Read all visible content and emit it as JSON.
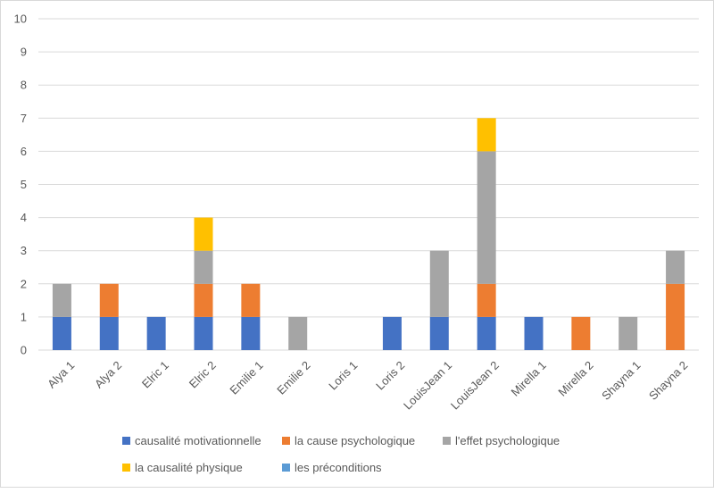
{
  "chart_data": {
    "type": "bar",
    "stacked": true,
    "categories": [
      "Alya 1",
      "Alya 2",
      "Elric 1",
      "Elric 2",
      "Emilie 1",
      "Emilie 2",
      "Loris 1",
      "Loris 2",
      "LouisJean 1",
      "LouisJean 2",
      "Mirella 1",
      "Mirella 2",
      "Shayna 1",
      "Shayna 2"
    ],
    "series": [
      {
        "name": "causalité motivationnelle",
        "color": "#4472c4",
        "values": [
          1,
          1,
          1,
          1,
          1,
          0,
          0,
          1,
          1,
          1,
          1,
          0,
          0,
          0
        ]
      },
      {
        "name": "la cause psychologique",
        "color": "#ed7d31",
        "values": [
          0,
          1,
          0,
          1,
          1,
          0,
          0,
          0,
          0,
          1,
          0,
          1,
          0,
          2
        ]
      },
      {
        "name": "l'effet psychologique",
        "color": "#a5a5a5",
        "values": [
          1,
          0,
          0,
          1,
          0,
          1,
          0,
          0,
          2,
          4,
          0,
          0,
          1,
          1
        ]
      },
      {
        "name": "la causalité physique",
        "color": "#ffc000",
        "values": [
          0,
          0,
          0,
          1,
          0,
          0,
          0,
          0,
          0,
          1,
          0,
          0,
          0,
          0
        ]
      },
      {
        "name": "les préconditions",
        "color": "#5b9bd5",
        "values": [
          0,
          0,
          0,
          0,
          0,
          0,
          0,
          0,
          0,
          0,
          0,
          0,
          0,
          0
        ]
      }
    ],
    "yticks": [
      "0",
      "1",
      "2",
      "3",
      "4",
      "5",
      "6",
      "7",
      "8",
      "9",
      "10"
    ],
    "ylim": [
      0,
      10
    ],
    "grid": true,
    "legend_position": "bottom"
  }
}
